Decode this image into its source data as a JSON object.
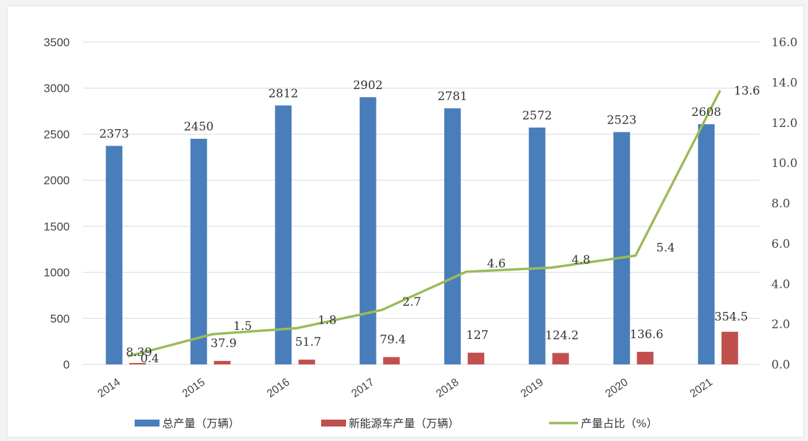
{
  "chart_data": {
    "type": "bar",
    "categories": [
      "2014",
      "2015",
      "2016",
      "2017",
      "2018",
      "2019",
      "2020",
      "2021"
    ],
    "series": [
      {
        "name": "总产量（万辆）",
        "type": "bar",
        "axis": "left",
        "color": "#4a7ebb",
        "values": [
          2373,
          2450,
          2812,
          2902,
          2781,
          2572,
          2523,
          2608
        ],
        "labels": [
          "2373",
          "2450",
          "2812",
          "2902",
          "2781",
          "2572",
          "2523",
          "2608"
        ]
      },
      {
        "name": "新能源车产量（万辆）",
        "type": "bar",
        "axis": "left",
        "color": "#c0504d",
        "values": [
          8.39,
          37.9,
          51.7,
          79.4,
          127,
          124.2,
          136.6,
          354.5
        ],
        "labels": [
          "8.39",
          "37.9",
          "51.7",
          "79.4",
          "127",
          "124.2",
          "136.6",
          "354.5"
        ]
      },
      {
        "name": "产量占比（%）",
        "type": "line",
        "axis": "right",
        "color": "#9bbb59",
        "values": [
          0.4,
          1.5,
          1.8,
          2.7,
          4.6,
          4.8,
          5.4,
          13.6
        ],
        "labels": [
          "0.4",
          "1.5",
          "1.8",
          "2.7",
          "4.6",
          "4.8",
          "5.4",
          "13.6"
        ]
      }
    ],
    "ylim_left": [
      0,
      3500
    ],
    "yticks_left": [
      "0",
      "500",
      "1000",
      "1500",
      "2000",
      "2500",
      "3000",
      "3500"
    ],
    "ylim_right": [
      0,
      16
    ],
    "yticks_right": [
      "0.0",
      "2.0",
      "4.0",
      "6.0",
      "8.0",
      "10.0",
      "12.0",
      "14.0",
      "16.0"
    ],
    "grid": true,
    "legend": "bottom"
  }
}
